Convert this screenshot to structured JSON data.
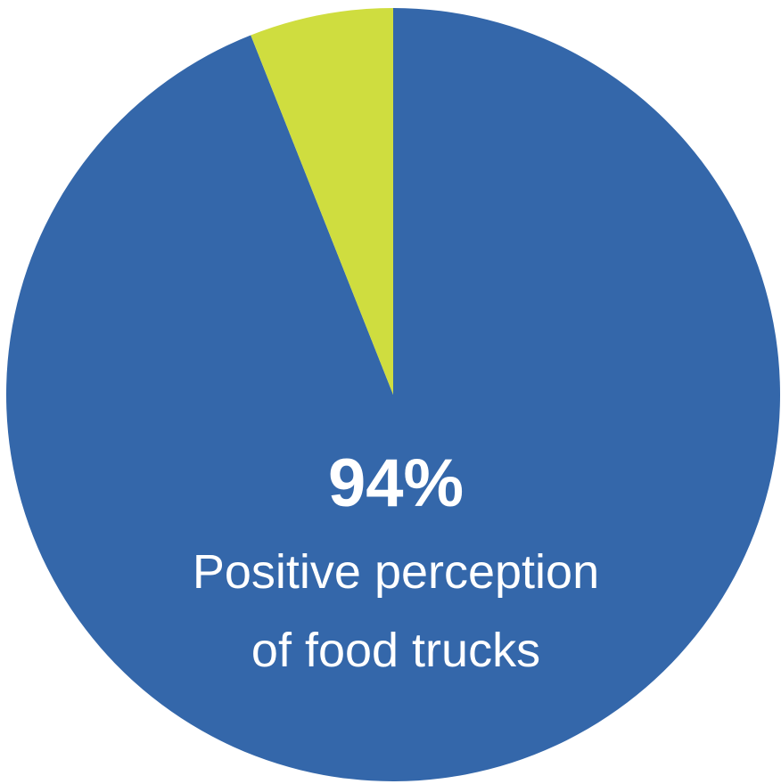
{
  "chart_data": {
    "type": "pie",
    "slices": [
      {
        "label": "Positive perception of food trucks",
        "value": 94,
        "color": "#3467aa"
      },
      {
        "label": "",
        "value": 6,
        "color": "#cfdd3f"
      }
    ],
    "annotation": {
      "value_text": "94%",
      "line1": "Positive perception",
      "line2": "of food trucks"
    }
  }
}
